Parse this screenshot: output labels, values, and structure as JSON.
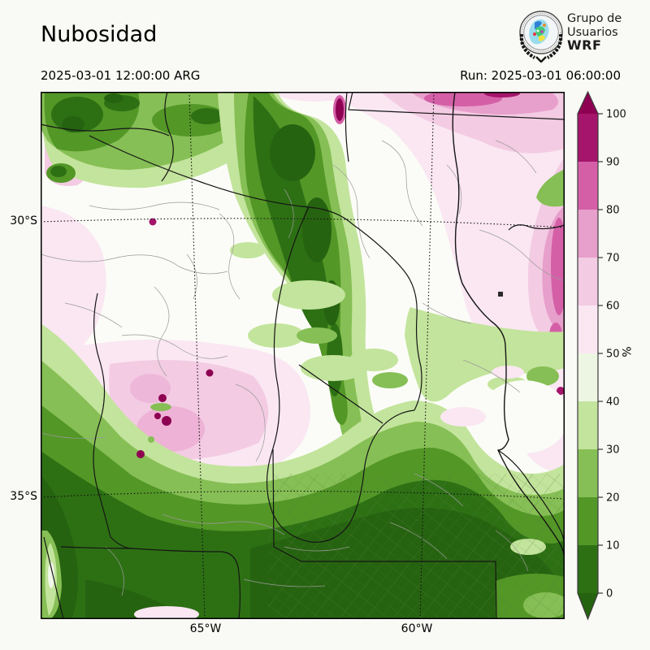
{
  "header": {
    "title": "Nubosidad",
    "valid_time": "2025-03-01 12:00:00 ARG",
    "run_text": "Run: 2025-03-01 06:00:00"
  },
  "logo": {
    "org_line1": "Grupo de",
    "org_line2": "Usuarios",
    "org_line3": "WRF"
  },
  "axes": {
    "y_ticks": [
      {
        "label": "30°S"
      },
      {
        "label": "35°S"
      }
    ],
    "x_ticks": [
      {
        "label": "65°W"
      },
      {
        "label": "60°W"
      }
    ]
  },
  "chart_data": {
    "type": "heatmap",
    "title": "Nubosidad",
    "variable": "cloud cover fraction",
    "unit": "%",
    "valid_time": "2025-03-01 12:00:00 ARG",
    "run_time": "2025-03-01 06:00:00",
    "projection_grid": "dotted graticule",
    "x_tick_labels": [
      "65°W",
      "60°W"
    ],
    "y_tick_labels": [
      "30°S",
      "35°S"
    ],
    "legend_position": "right",
    "colorbar": {
      "label": "%",
      "ticks": [
        0,
        10,
        20,
        30,
        40,
        50,
        60,
        70,
        80,
        90,
        100
      ],
      "bin_colors": [
        "#2d7014",
        "#539727",
        "#86bf55",
        "#c3e49c",
        "#edf6e3",
        "#fae7f2",
        "#f3cbe3",
        "#e79fcb",
        "#d45fa7",
        "#a5156b"
      ],
      "under_color": "#266310",
      "over_color": "#8e0152",
      "extend": "both"
    },
    "features": [
      {
        "area": "south / bottom half of domain",
        "cloud_pct": "0-20 (clear, dark green)"
      },
      {
        "area": "north-central diagonal band",
        "cloud_pct": "0-20 (dark green)"
      },
      {
        "area": "northwest corner",
        "cloud_pct": "10-40 with local 90-100 spots"
      },
      {
        "area": "northeast quadrant and east edge",
        "cloud_pct": "50-90 (pink), local 90-100"
      },
      {
        "area": "west-central blob (San Luis area)",
        "cloud_pct": "50-70 with 90-100 spots"
      },
      {
        "area": "center of domain",
        "cloud_pct": "30-50 (white / light green mottling)"
      }
    ]
  }
}
